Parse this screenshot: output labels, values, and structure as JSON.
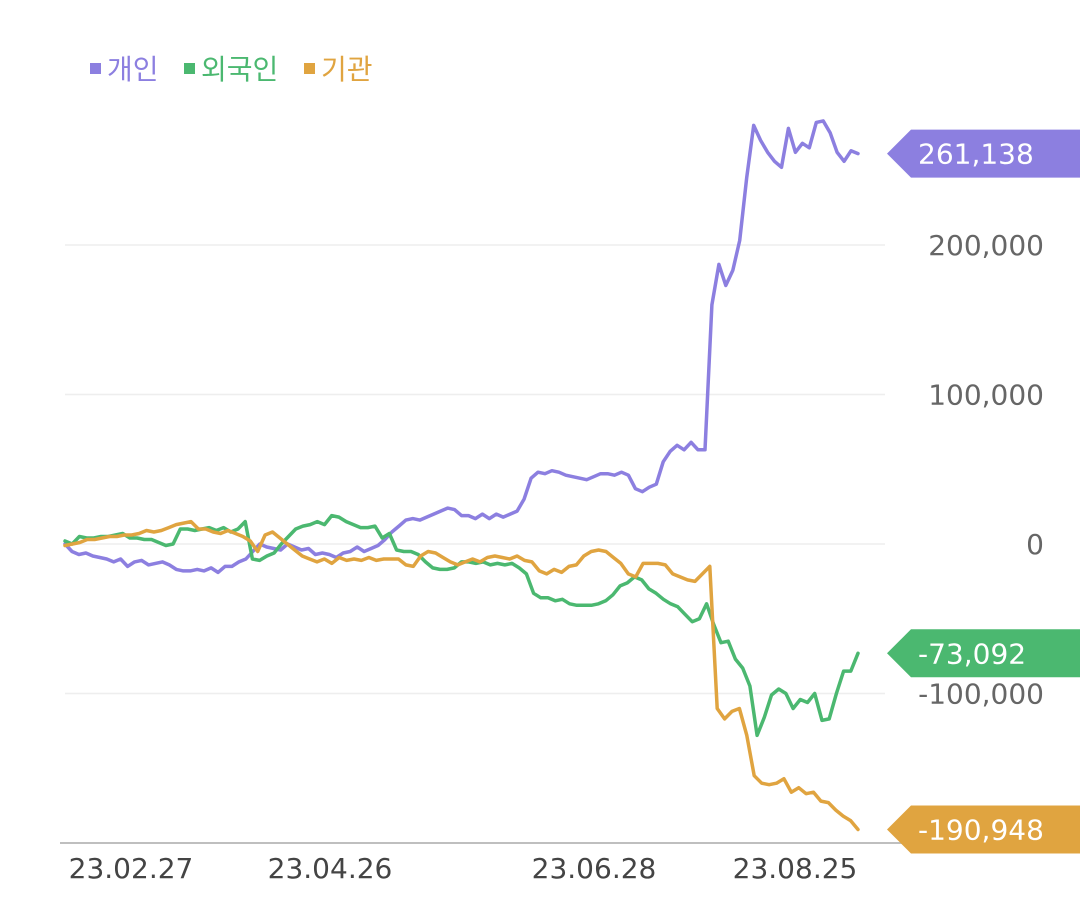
{
  "chart_data": {
    "type": "line",
    "x_ticks": [
      "23.02.27",
      "23.04.26",
      "23.06.28",
      "23.08.25"
    ],
    "y_ticks": [
      "200,000",
      "100,000",
      "0",
      "-100,000"
    ],
    "ylim": [
      -190948,
      280000
    ],
    "grid": true,
    "legend_position": "top-left",
    "series": [
      {
        "name": "개인",
        "color": "#8C7FE0",
        "end_label": "261,138",
        "values": [
          0,
          -5000,
          -7000,
          -6000,
          -8000,
          -9000,
          -10000,
          -12000,
          -10000,
          -15000,
          -12000,
          -11000,
          -14000,
          -13000,
          -12000,
          -14000,
          -17000,
          -18000,
          -18000,
          -17000,
          -18000,
          -16000,
          -19000,
          -15000,
          -15000,
          -12000,
          -10000,
          -5000,
          0,
          -2000,
          -3000,
          -4000,
          0,
          -2000,
          -4000,
          -3000,
          -7000,
          -6000,
          -7000,
          -9000,
          -6000,
          -5000,
          -2000,
          -5000,
          -3000,
          -1000,
          3000,
          8000,
          12000,
          16000,
          17000,
          16000,
          18000,
          20000,
          22000,
          24000,
          23000,
          19000,
          19000,
          17000,
          20000,
          17000,
          20000,
          18000,
          20000,
          22000,
          30000,
          44000,
          48000,
          47000,
          49000,
          48000,
          46000,
          45000,
          44000,
          43000,
          45000,
          47000,
          47000,
          46000,
          48000,
          46000,
          37000,
          35000,
          38000,
          40000,
          55000,
          62000,
          66000,
          63000,
          68000,
          63000,
          63000,
          160000,
          187000,
          173000,
          183000,
          203000,
          245000,
          280000,
          270000,
          262000,
          256000,
          252000,
          278000,
          262000,
          268000,
          265000,
          282000,
          283000,
          275000,
          262000,
          256000,
          263000,
          261138
        ]
      },
      {
        "name": "외국인",
        "color": "#4BB870",
        "end_label": "-73,092",
        "values": [
          2000,
          0,
          5000,
          4000,
          4000,
          5000,
          5000,
          6000,
          7000,
          4000,
          4000,
          3000,
          3000,
          1000,
          -1000,
          0,
          10000,
          10000,
          9000,
          10000,
          11000,
          9000,
          11000,
          8000,
          10000,
          15000,
          -10000,
          -11000,
          -8000,
          -6000,
          0,
          5000,
          10000,
          12000,
          13000,
          15000,
          13000,
          19000,
          18000,
          15000,
          13000,
          11000,
          11000,
          12000,
          4000,
          7000,
          -4000,
          -5000,
          -5000,
          -7000,
          -12000,
          -16000,
          -17000,
          -17000,
          -16000,
          -12000,
          -12000,
          -13000,
          -12000,
          -14000,
          -13000,
          -14000,
          -13000,
          -16000,
          -20000,
          -33000,
          -36000,
          -36000,
          -38000,
          -37000,
          -40000,
          -41000,
          -41000,
          -41000,
          -40000,
          -38000,
          -34000,
          -28000,
          -26000,
          -22000,
          -24000,
          -30000,
          -33000,
          -37000,
          -40000,
          -42000,
          -47000,
          -52000,
          -50000,
          -40000,
          -54000,
          -66000,
          -65000,
          -77000,
          -83000,
          -95000,
          -128000,
          -116000,
          -101000,
          -97000,
          -100000,
          -110000,
          -104000,
          -106000,
          -100000,
          -118000,
          -117000,
          -100000,
          -85000,
          -85000,
          -73092
        ]
      },
      {
        "name": "기관",
        "color": "#E0A440",
        "end_label": "-190,948",
        "values": [
          -1000,
          0,
          1000,
          3000,
          3000,
          4000,
          5000,
          5000,
          6000,
          6000,
          7000,
          9000,
          8000,
          9000,
          11000,
          13000,
          14000,
          15000,
          10000,
          10000,
          8000,
          7000,
          9000,
          7000,
          5000,
          2000,
          -5000,
          6000,
          8000,
          4000,
          0,
          -4000,
          -8000,
          -10000,
          -12000,
          -10000,
          -13000,
          -9000,
          -11000,
          -10000,
          -11000,
          -9000,
          -11000,
          -10000,
          -10000,
          -10000,
          -14000,
          -15000,
          -8000,
          -5000,
          -6000,
          -9000,
          -12000,
          -14000,
          -12000,
          -10000,
          -12000,
          -9000,
          -8000,
          -9000,
          -10000,
          -8000,
          -11000,
          -12000,
          -18000,
          -20000,
          -17000,
          -19000,
          -15000,
          -14000,
          -8000,
          -5000,
          -4000,
          -5000,
          -9000,
          -13000,
          -20000,
          -22000,
          -13000,
          -13000,
          -13000,
          -14000,
          -20000,
          -22000,
          -24000,
          -25000,
          -20000,
          -15000,
          -110000,
          -117000,
          -112000,
          -110000,
          -128000,
          -155000,
          -160000,
          -161000,
          -160000,
          -157000,
          -166000,
          -163000,
          -167000,
          -166000,
          -172000,
          -173000,
          -178000,
          -182000,
          -185000,
          -190948
        ]
      }
    ]
  }
}
